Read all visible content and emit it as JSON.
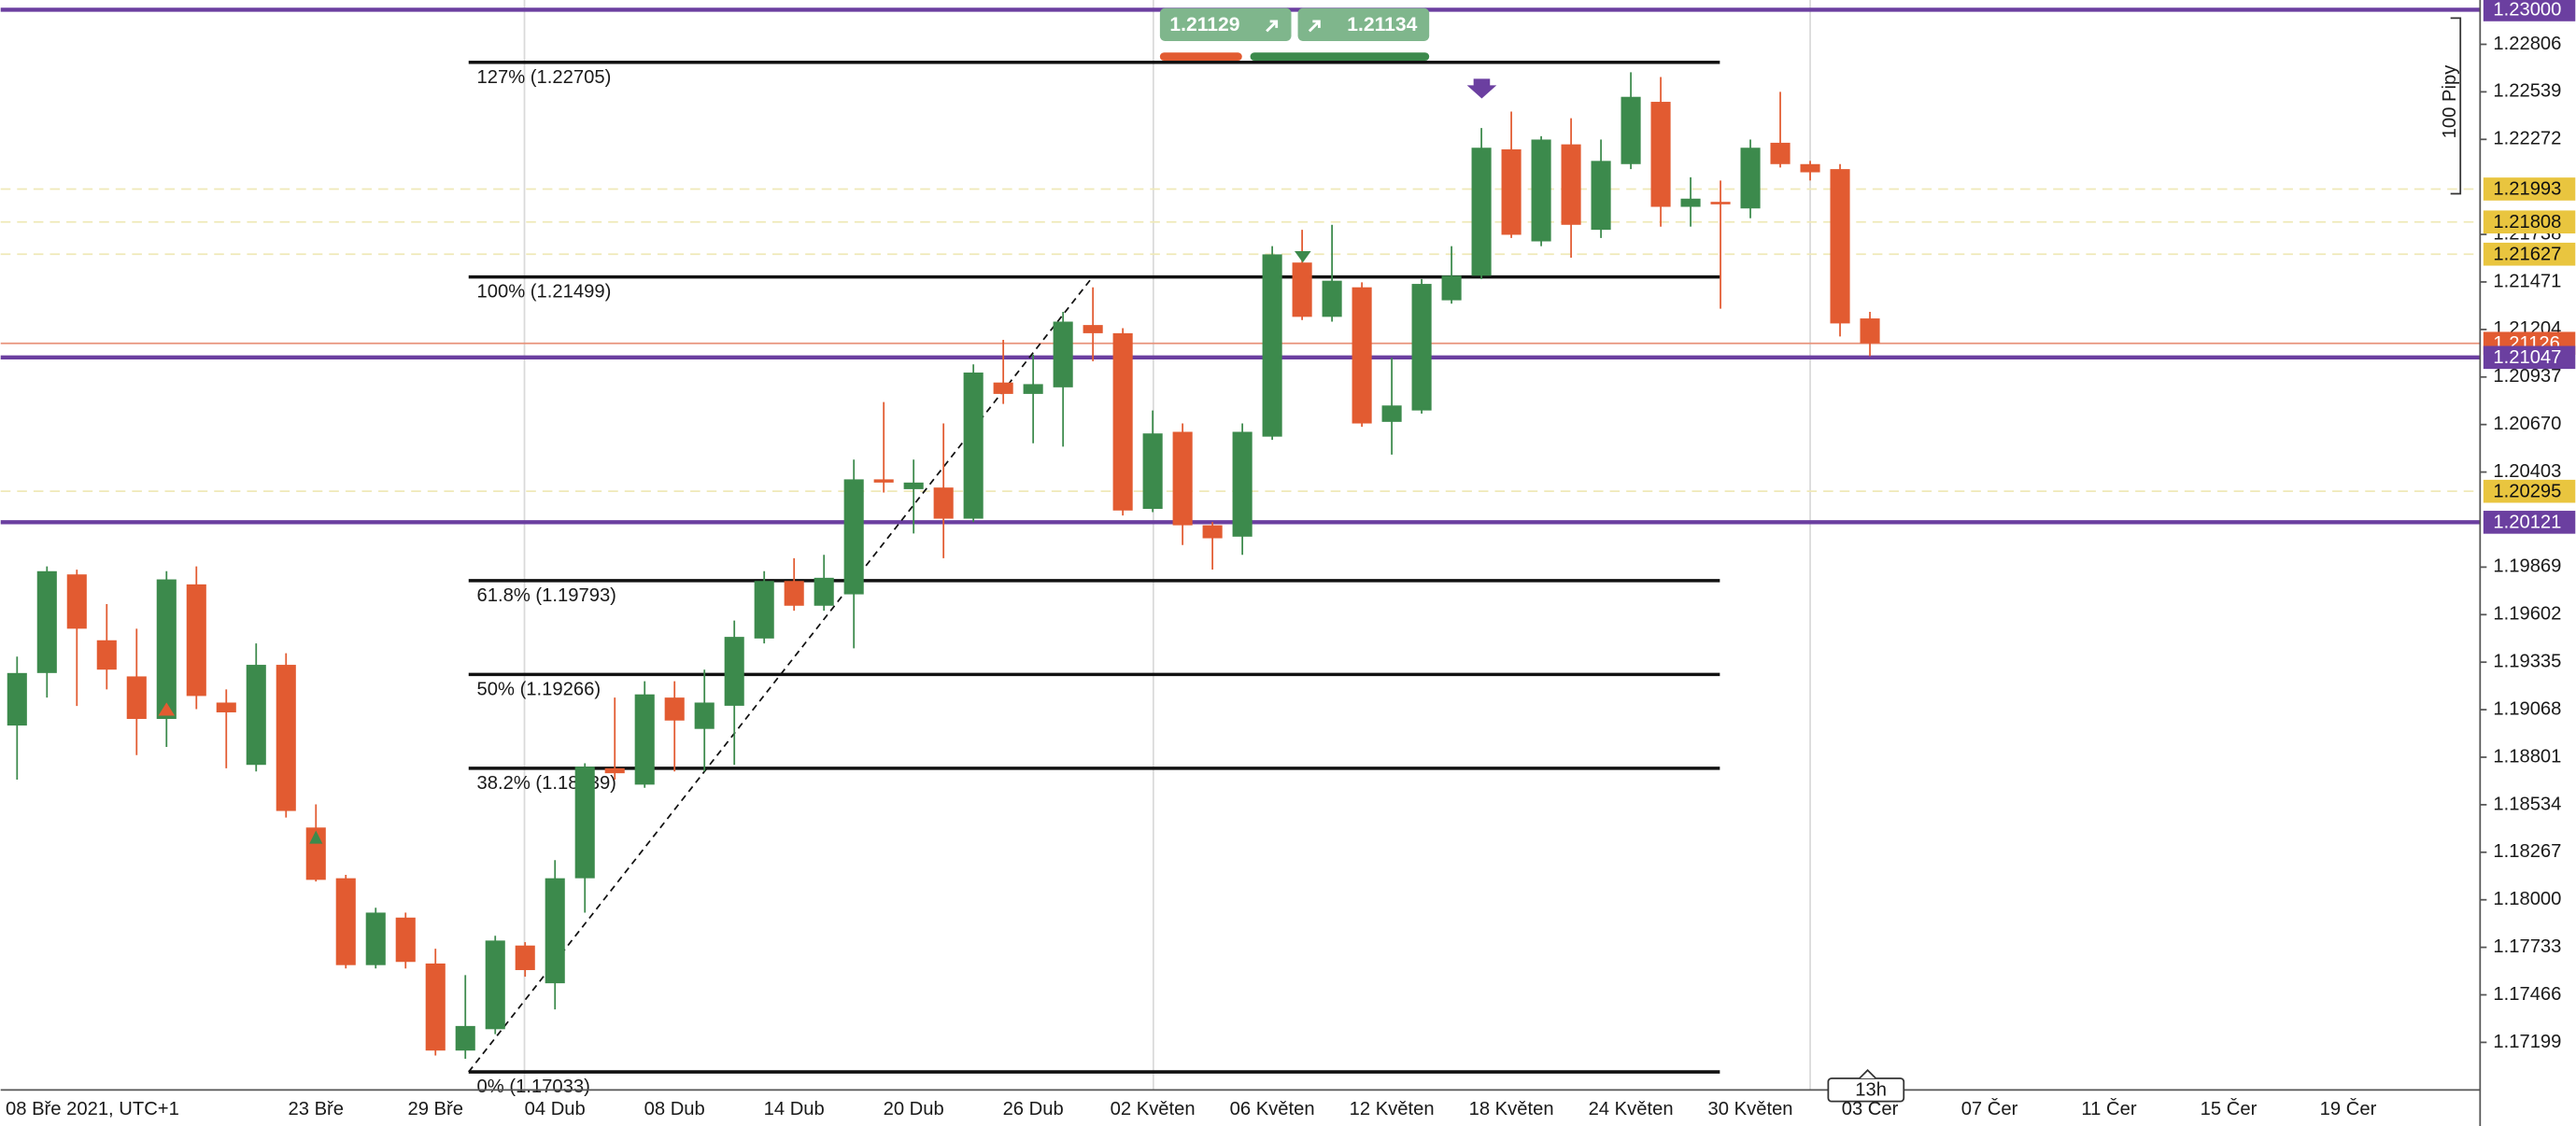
{
  "chart_data": {
    "type": "candlestick",
    "categories": [
      "08 Bře 2021, UTC+1",
      null,
      null,
      null,
      null,
      null,
      null,
      null,
      null,
      null,
      "23 Bře",
      null,
      null,
      null,
      "29 Bře",
      null,
      null,
      null,
      "04 Dub",
      null,
      null,
      null,
      "08 Dub",
      null,
      null,
      null,
      "14 Dub",
      null,
      null,
      null,
      "20 Dub",
      null,
      null,
      null,
      "26 Dub",
      null,
      null,
      null,
      "02 Květen",
      null,
      null,
      null,
      "06 Květen",
      null,
      null,
      null,
      "12 Květen",
      null,
      null,
      null,
      "18 Květen",
      null,
      null,
      null,
      "24 Květen",
      null,
      null,
      null,
      "30 Květen",
      null,
      null,
      null,
      "03 Čer",
      null,
      null,
      null,
      "07 Čer",
      null,
      null,
      null,
      "11 Čer",
      null,
      null,
      null,
      "15 Čer",
      null,
      null,
      null,
      "19 Čer"
    ],
    "open": [
      1.18979,
      1.19274,
      1.19828,
      1.19458,
      1.19255,
      1.19016,
      1.19772,
      1.19108,
      1.18758,
      1.1932,
      1.18406,
      1.18121,
      1.17633,
      1.179,
      1.17642,
      1.17153,
      1.17273,
      1.17743,
      1.17531,
      1.18121,
      1.18739,
      1.18647,
      1.19136,
      1.1896,
      1.1909,
      1.19468,
      1.19791,
      1.19652,
      1.19716,
      1.20362,
      1.20307,
      1.20316,
      1.20141,
      1.20906,
      1.20842,
      1.20879,
      1.21229,
      1.21183,
      1.20196,
      1.20629,
      1.20104,
      1.2004,
      1.20602,
      1.2158,
      1.21275,
      1.21441,
      1.20685,
      1.20749,
      1.21368,
      1.21506,
      1.22216,
      1.21699,
      1.22244,
      1.21764,
      1.22133,
      1.22483,
      1.21893,
      1.21921,
      1.21884,
      1.22253,
      1.22133,
      1.22105,
      1.21266,
      null,
      null,
      null,
      null,
      null,
      null,
      null,
      null,
      null,
      null,
      null,
      null,
      null,
      null,
      null,
      null
    ],
    "high": [
      1.19366,
      1.19873,
      1.19855,
      1.19661,
      1.19523,
      1.19846,
      1.19873,
      1.19182,
      1.1944,
      1.19385,
      1.18536,
      1.1814,
      1.17955,
      1.17928,
      1.17725,
      1.17577,
      1.17798,
      1.17762,
      1.18223,
      1.18767,
      1.19136,
      1.19228,
      1.19228,
      1.19293,
      1.19569,
      1.19846,
      1.19919,
      1.19938,
      1.20473,
      1.20796,
      1.20473,
      1.20676,
      1.21008,
      1.21146,
      1.21063,
      1.21303,
      1.21441,
      1.21211,
      1.20749,
      1.20676,
      1.20122,
      1.20676,
      1.21672,
      1.21764,
      1.21792,
      1.21469,
      1.21045,
      1.21487,
      1.21672,
      1.22336,
      1.22428,
      1.2229,
      1.22391,
      1.22271,
      1.22649,
      1.22622,
      1.22059,
      1.22041,
      1.22271,
      1.22539,
      1.22151,
      1.22133,
      1.21303,
      null,
      null,
      null,
      null,
      null,
      null,
      null,
      null,
      null,
      null,
      null,
      null,
      null,
      null,
      null,
      null
    ],
    "low": [
      1.18675,
      1.19136,
      1.19089,
      1.19182,
      1.18813,
      1.18859,
      1.19071,
      1.18739,
      1.18721,
      1.18462,
      1.18103,
      1.17614,
      1.17614,
      1.17614,
      1.17125,
      1.17107,
      1.17245,
      1.17568,
      1.17384,
      1.17928,
      1.18675,
      1.18629,
      1.18721,
      1.18721,
      1.18758,
      1.1944,
      1.19624,
      1.19624,
      1.19413,
      1.20288,
      1.20058,
      1.19919,
      1.20122,
      1.20786,
      1.20565,
      1.20546,
      1.21026,
      1.20159,
      1.20178,
      1.19993,
      1.19855,
      1.19938,
      1.20584,
      1.21257,
      1.21248,
      1.20657,
      1.20501,
      1.20731,
      1.21349,
      1.21487,
      1.21718,
      1.21672,
      1.21607,
      1.21718,
      1.22105,
      1.21782,
      1.21782,
      1.21321,
      1.21829,
      1.22114,
      1.22041,
      1.21165,
      1.21054,
      null,
      null,
      null,
      null,
      null,
      null,
      null,
      null,
      null,
      null,
      null,
      null,
      null,
      null,
      null,
      null
    ],
    "close": [
      1.19274,
      1.19846,
      1.19523,
      1.19293,
      1.19016,
      1.198,
      1.19145,
      1.19053,
      1.1932,
      1.18499,
      1.18112,
      1.17633,
      1.17928,
      1.17651,
      1.17153,
      1.17291,
      1.17771,
      1.17605,
      1.18121,
      1.18748,
      1.18711,
      1.19154,
      1.19007,
      1.19108,
      1.19477,
      1.19791,
      1.19652,
      1.19809,
      1.20362,
      1.20344,
      1.20344,
      1.20141,
      1.20962,
      1.20842,
      1.20897,
      1.21248,
      1.21183,
      1.20187,
      1.2062,
      1.20104,
      1.20031,
      1.20629,
      1.21626,
      1.21275,
      1.21478,
      1.20676,
      1.20777,
      1.2146,
      1.21506,
      1.22225,
      1.21736,
      1.22271,
      1.21792,
      1.22151,
      1.22511,
      1.21893,
      1.21939,
      1.21912,
      1.22225,
      1.22133,
      1.22087,
      1.21238,
      1.21126,
      null,
      null,
      null,
      null,
      null,
      null,
      null,
      null,
      null,
      null,
      null,
      null,
      null,
      null,
      null,
      null
    ],
    "up_color": "#3c8a4c",
    "down_color": "#e25b31",
    "ylim": [
      1.16932,
      1.23055
    ],
    "yticks": [
      1.22806,
      1.22539,
      1.22272,
      1.21738,
      1.21471,
      1.21204,
      1.20937,
      {
        "value": 1.2067,
        "label": "1.20670"
      },
      1.20403,
      1.19869,
      1.19602,
      1.19335,
      1.19068,
      1.18801,
      1.18534,
      1.18267,
      {
        "value": 1.18,
        "label": "1.18000"
      },
      1.17733,
      1.17466,
      1.17199
    ],
    "fib_levels": [
      {
        "value": 1.22705,
        "label": "127% (1.22705)"
      },
      {
        "value": 1.21499,
        "label": "100% (1.21499)"
      },
      {
        "value": 1.19793,
        "label": "61.8% (1.19793)"
      },
      {
        "value": 1.19266,
        "label": "50% (1.19266)"
      },
      {
        "value": 1.18739,
        "label": "38.2% (1.18739)"
      },
      {
        "value": 1.17033,
        "label": "0% (1.17033)"
      }
    ],
    "price_levels": [
      {
        "value": 1.23,
        "label": "1.23000",
        "color": "#6b3fa0",
        "style": "solid"
      },
      {
        "value": 1.21993,
        "label": "1.21993",
        "color": "#e9c53f",
        "style": "dashed"
      },
      {
        "value": 1.21808,
        "label": "1.21808",
        "color": "#e9c53f",
        "style": "dashed"
      },
      {
        "value": 1.21627,
        "label": "1.21627",
        "color": "#e9c53f",
        "style": "dashed"
      },
      {
        "value": 1.21047,
        "label": "1.21047",
        "color": "#6b3fa0",
        "style": "solid"
      },
      {
        "value": 1.20295,
        "label": "1.20295",
        "color": "#e9c53f",
        "style": "dashed"
      },
      {
        "value": 1.20121,
        "label": "1.20121",
        "color": "#6b3fa0",
        "style": "solid"
      }
    ],
    "current_price": {
      "value": 1.21126,
      "label": "1.21126",
      "color": "#e25b31"
    }
  },
  "trade_panel": {
    "sell": "1.21129",
    "buy": "1.21134"
  },
  "pip_ruler": "100 Pipy",
  "timeframe_label": "13h"
}
